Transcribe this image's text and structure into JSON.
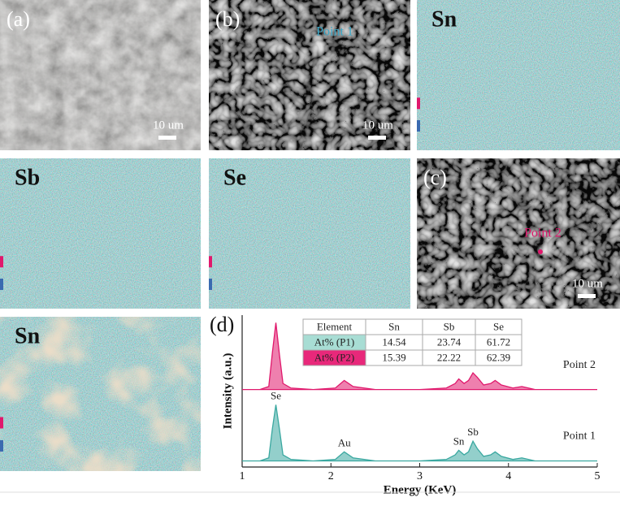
{
  "panels": [
    {
      "label": "(a)",
      "scale_bar": "10 um"
    },
    {
      "label": "(b)",
      "scale_bar": "10 um",
      "point": "Point 1"
    },
    {
      "label": "Sn"
    },
    {
      "label": "Sb"
    },
    {
      "label": "Se"
    },
    {
      "label": "(c)",
      "scale_bar": "10 um",
      "point": "Point 2"
    },
    {
      "label": "Sn"
    }
  ],
  "chart_data": {
    "type": "line",
    "panel_label": "(d)",
    "xlabel": "Energy (KeV)",
    "ylabel": "Intensity (a.u.)",
    "x": [
      1,
      1.2,
      1.3,
      1.34,
      1.38,
      1.42,
      1.46,
      1.55,
      1.8,
      2.05,
      2.15,
      2.25,
      2.5,
      3.0,
      3.3,
      3.4,
      3.44,
      3.5,
      3.55,
      3.6,
      3.65,
      3.72,
      3.8,
      3.85,
      3.92,
      4.05,
      4.15,
      4.3,
      4.6,
      5
    ],
    "xlim": [
      1,
      5
    ],
    "xticks": [
      1,
      2,
      3,
      4,
      5
    ],
    "ylim": [
      0,
      100
    ],
    "series": [
      {
        "name": "Point 2",
        "color": "#e0186c",
        "values": [
          51,
          51,
          53,
          75,
          95,
          74,
          55,
          52,
          51,
          52,
          57,
          53,
          51,
          51,
          52,
          55,
          58,
          55,
          57,
          62,
          59,
          54,
          55,
          57,
          54,
          52,
          53,
          51,
          51,
          51
        ]
      },
      {
        "name": "Point 1",
        "color": "#3aa8a0",
        "values": [
          4,
          4,
          6,
          25,
          41,
          25,
          8,
          5,
          4,
          5,
          10,
          6,
          4,
          4,
          5,
          8,
          11,
          8,
          10,
          17,
          12,
          7,
          8,
          10,
          7,
          5,
          6,
          4,
          4,
          4
        ]
      }
    ],
    "annotations": [
      {
        "text": "Se",
        "x": 1.38
      },
      {
        "text": "Au",
        "x": 2.15
      },
      {
        "text": "Sn",
        "x": 3.44
      },
      {
        "text": "Sb",
        "x": 3.6
      }
    ],
    "table": {
      "header": [
        "Element",
        "Sn",
        "Sb",
        "Se"
      ],
      "rows": [
        [
          "At% (P1)",
          "14.54",
          "23.74",
          "61.72"
        ],
        [
          "At% (P2)",
          "15.39",
          "22.22",
          "62.39"
        ]
      ]
    }
  }
}
